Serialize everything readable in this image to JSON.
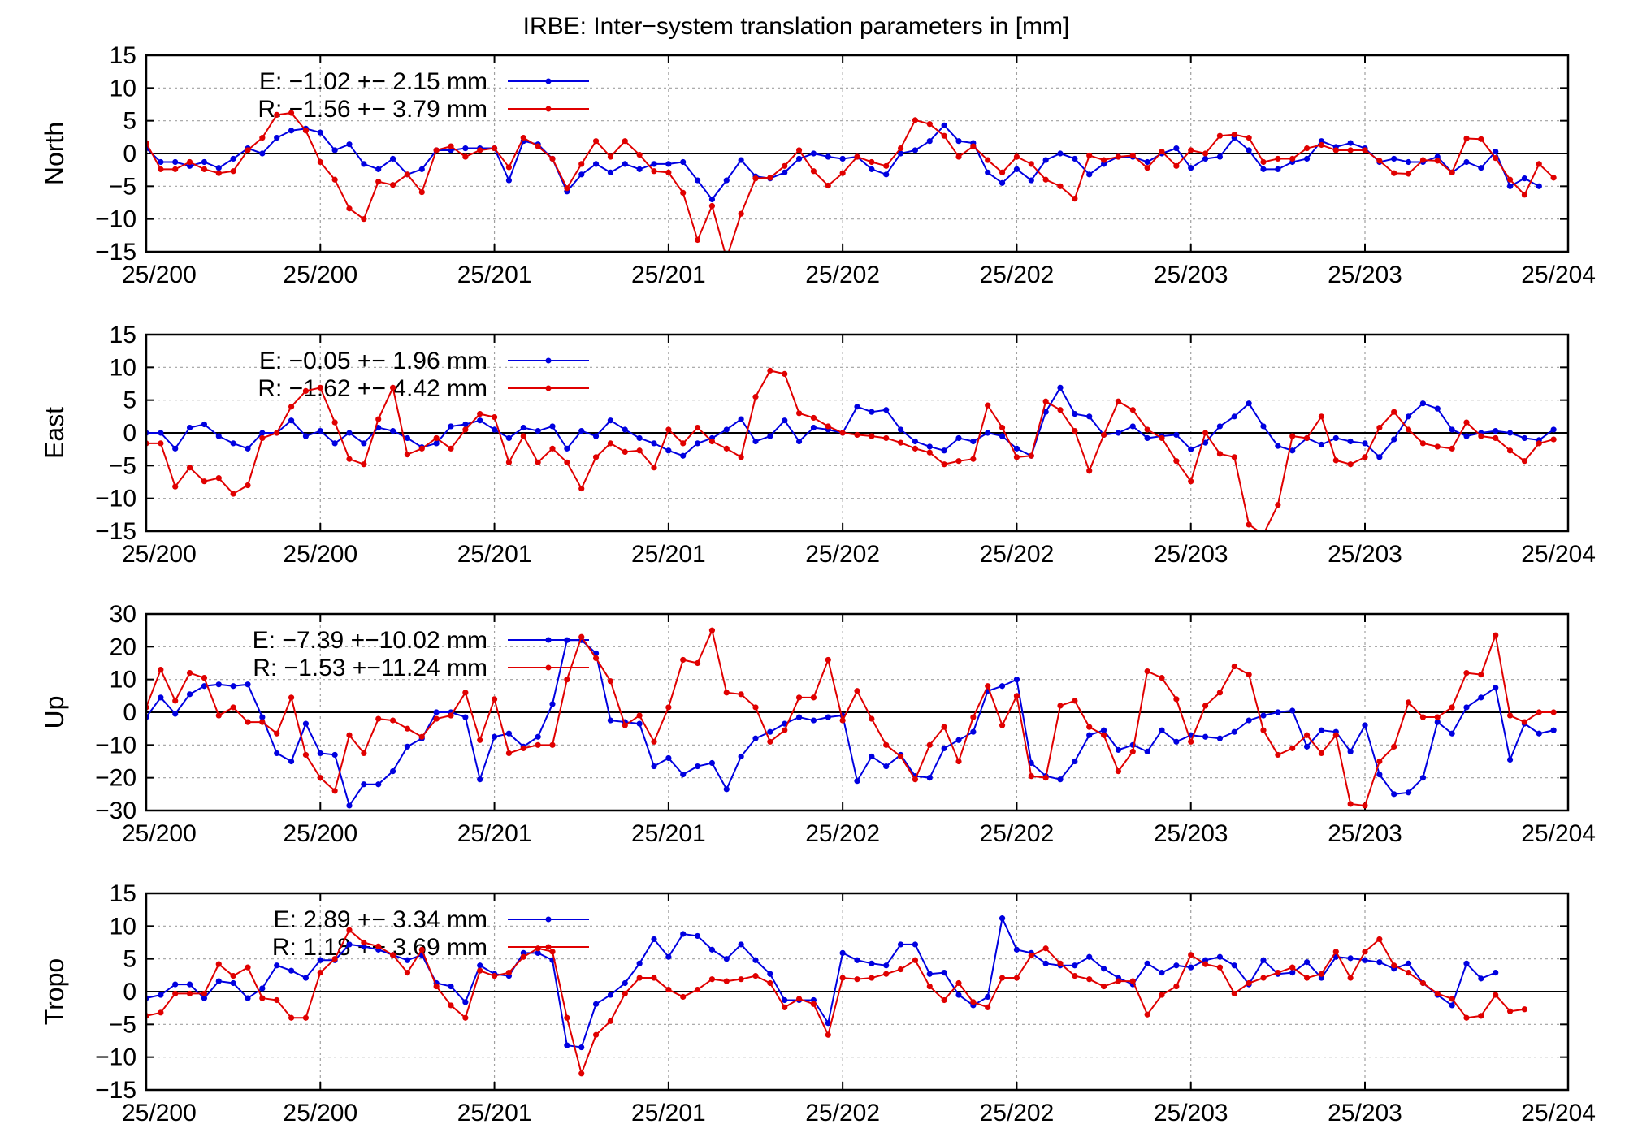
{
  "title": "IRBE: Inter−system translation parameters in [mm]",
  "colors": {
    "E": "#0000e0",
    "R": "#e00000",
    "grid": "#a0a0a0",
    "axis": "#000000"
  },
  "chart_data": [
    {
      "type": "line",
      "ylabel": "North",
      "ylim": [
        -15,
        15
      ],
      "yticks": [
        15,
        10,
        5,
        0,
        -5,
        -10,
        -15
      ],
      "ytick_labels": [
        "15",
        "10",
        "5",
        "0",
        "−5",
        "−10",
        "−15"
      ],
      "xlim": [
        0,
        98
      ],
      "xticks": [
        0,
        12,
        24,
        36,
        48,
        60,
        72,
        84,
        98
      ],
      "xtick_labels": [
        "25/200",
        "25/200",
        "25/201",
        "25/201",
        "25/202",
        "25/202",
        "25/203",
        "25/203",
        "25/204"
      ],
      "grid": "dotted",
      "legend": "top-left",
      "series": [
        {
          "name": "E",
          "legend_label": "E:  −1.02 +− 2.15 mm",
          "values": [
            0.8,
            -1.3,
            -1.3,
            -1.9,
            -1.3,
            -2.2,
            -0.8,
            0.8,
            0.0,
            2.4,
            3.5,
            3.8,
            3.2,
            0.5,
            1.4,
            -1.6,
            -2.4,
            -0.8,
            -3.2,
            -2.4,
            0.5,
            0.5,
            0.8,
            0.8,
            0.8,
            -4.1,
            1.9,
            1.4,
            -0.8,
            -5.8,
            -3.2,
            -1.6,
            -2.9,
            -1.6,
            -2.4,
            -1.6,
            -1.6,
            -1.3,
            -4.1,
            -7.0,
            -4.1,
            -1.0,
            -3.5,
            -3.8,
            -2.9,
            -0.8,
            0.0,
            -0.5,
            -0.8,
            -0.5,
            -2.4,
            -3.2,
            0.0,
            0.5,
            1.9,
            4.3,
            1.9,
            1.6,
            -2.9,
            -4.5,
            -2.4,
            -4.1,
            -1.0,
            0.0,
            -0.8,
            -3.2,
            -1.6,
            -0.5,
            -0.5,
            -1.3,
            0.0,
            0.8,
            -2.2,
            -0.8,
            -0.5,
            2.4,
            0.5,
            -2.4,
            -2.4,
            -1.3,
            -0.8,
            1.9,
            1.0,
            1.6,
            0.8,
            -1.3,
            -0.8,
            -1.3,
            -1.3,
            -0.5,
            -2.9,
            -1.3,
            -2.2,
            0.3,
            -5.0,
            -3.8,
            -5.0
          ]
        },
        {
          "name": "R",
          "legend_label": "R:  −1.56 +− 3.79 mm",
          "values": [
            1.6,
            -2.4,
            -2.4,
            -1.3,
            -2.4,
            -3.0,
            -2.7,
            0.5,
            2.4,
            5.9,
            6.2,
            3.5,
            -1.3,
            -4.0,
            -8.4,
            -10.0,
            -4.3,
            -4.8,
            -3.2,
            -5.9,
            0.5,
            1.1,
            -0.5,
            0.5,
            0.8,
            -2.1,
            2.4,
            1.1,
            -0.8,
            -5.3,
            -1.6,
            1.9,
            -0.5,
            1.9,
            -0.2,
            -2.7,
            -2.9,
            -6.0,
            -13.2,
            -8.0,
            -16.0,
            -9.2,
            -3.8,
            -3.7,
            -1.9,
            0.5,
            -2.7,
            -4.9,
            -3.0,
            -0.5,
            -1.3,
            -1.9,
            0.8,
            5.1,
            4.5,
            2.7,
            -0.5,
            1.1,
            -1.0,
            -2.9,
            -0.5,
            -1.6,
            -4.0,
            -5.0,
            -6.9,
            -0.3,
            -1.0,
            -0.5,
            -0.3,
            -2.2,
            0.3,
            -1.9,
            0.5,
            0.0,
            2.7,
            2.9,
            2.4,
            -1.3,
            -0.8,
            -0.8,
            0.8,
            1.3,
            0.5,
            0.5,
            0.5,
            -1.1,
            -3.0,
            -3.1,
            -1.0,
            -1.1,
            -2.9,
            2.3,
            2.2,
            -0.7,
            -4.0,
            -6.3,
            -1.6,
            -3.7
          ]
        }
      ]
    },
    {
      "type": "line",
      "ylabel": "East",
      "ylim": [
        -15,
        15
      ],
      "yticks": [
        15,
        10,
        5,
        0,
        -5,
        -10,
        -15
      ],
      "ytick_labels": [
        "15",
        "10",
        "5",
        "0",
        "−5",
        "−10",
        "−15"
      ],
      "xlim": [
        0,
        98
      ],
      "xticks": [
        0,
        12,
        24,
        36,
        48,
        60,
        72,
        84,
        98
      ],
      "xtick_labels": [
        "25/200",
        "25/200",
        "25/201",
        "25/201",
        "25/202",
        "25/202",
        "25/203",
        "25/203",
        "25/204"
      ],
      "grid": "dotted",
      "legend": "top-left",
      "series": [
        {
          "name": "E",
          "legend_label": "E:  −0.05 +− 1.96 mm",
          "values": [
            0.0,
            0.0,
            -2.4,
            0.8,
            1.3,
            -0.5,
            -1.6,
            -2.4,
            0.0,
            0.0,
            1.9,
            -0.5,
            0.3,
            -1.6,
            0.0,
            -1.6,
            0.8,
            0.3,
            -0.8,
            -2.2,
            -1.6,
            1.0,
            1.3,
            1.9,
            0.5,
            -0.8,
            0.8,
            0.3,
            1.0,
            -2.4,
            0.3,
            -0.5,
            1.9,
            0.5,
            -0.8,
            -1.6,
            -2.7,
            -3.5,
            -1.6,
            -0.8,
            0.5,
            2.1,
            -1.3,
            -0.5,
            1.9,
            -1.3,
            0.8,
            0.5,
            0.0,
            4.0,
            3.2,
            3.5,
            0.5,
            -1.3,
            -2.1,
            -2.7,
            -0.8,
            -1.3,
            0.0,
            -0.5,
            -2.4,
            -3.5,
            3.2,
            6.9,
            2.9,
            2.5,
            -0.3,
            0.0,
            1.0,
            -0.8,
            -0.5,
            -0.3,
            -2.5,
            -1.5,
            1.0,
            2.5,
            4.5,
            1.0,
            -2.0,
            -2.7,
            -0.8,
            -1.8,
            -0.8,
            -1.3,
            -1.6,
            -3.7,
            -1.0,
            2.5,
            4.5,
            3.7,
            0.5,
            -0.5,
            0.0,
            0.3,
            0.0,
            -0.8,
            -1.1,
            0.5
          ]
        },
        {
          "name": "R",
          "legend_label": "R:  −1.62 +− 4.42 mm",
          "values": [
            -1.6,
            -1.6,
            -8.2,
            -5.3,
            -7.4,
            -6.9,
            -9.3,
            -8.0,
            -0.8,
            0.0,
            4.0,
            6.4,
            6.9,
            1.6,
            -4.0,
            -4.8,
            2.1,
            6.9,
            -3.3,
            -2.4,
            -0.8,
            -2.4,
            0.5,
            2.9,
            2.4,
            -4.5,
            -0.5,
            -4.5,
            -2.4,
            -4.5,
            -8.5,
            -3.7,
            -1.6,
            -2.9,
            -2.7,
            -5.3,
            0.5,
            -1.6,
            0.8,
            -1.3,
            -2.4,
            -3.7,
            5.5,
            9.5,
            9.0,
            3.0,
            2.3,
            1.0,
            0.0,
            -0.3,
            -0.5,
            -0.8,
            -1.5,
            -2.4,
            -3.0,
            -4.8,
            -4.3,
            -4.0,
            4.2,
            0.8,
            -3.7,
            -3.5,
            4.8,
            3.5,
            0.3,
            -5.8,
            -0.3,
            4.8,
            3.5,
            0.5,
            -0.8,
            -4.3,
            -7.4,
            0.0,
            -3.2,
            -3.7,
            -14.0,
            -15.5,
            -11.0,
            -0.5,
            -0.8,
            2.5,
            -4.2,
            -4.8,
            -3.7,
            0.8,
            3.2,
            0.5,
            -1.6,
            -2.1,
            -2.4,
            1.6,
            -0.5,
            -0.8,
            -2.7,
            -4.3,
            -1.6,
            -1.0
          ]
        }
      ]
    },
    {
      "type": "line",
      "ylabel": "Up",
      "ylim": [
        -30,
        30
      ],
      "yticks": [
        30,
        20,
        10,
        0,
        -10,
        -20,
        -30
      ],
      "ytick_labels": [
        "30",
        "20",
        "10",
        "0",
        "−10",
        "−20",
        "−30"
      ],
      "xlim": [
        0,
        98
      ],
      "xticks": [
        0,
        12,
        24,
        36,
        48,
        60,
        72,
        84,
        98
      ],
      "xtick_labels": [
        "25/200",
        "25/200",
        "25/201",
        "25/201",
        "25/202",
        "25/202",
        "25/203",
        "25/203",
        "25/204"
      ],
      "grid": "dotted",
      "legend": "top-left",
      "series": [
        {
          "name": "E",
          "legend_label": "E:  −7.39 +−10.02 mm",
          "values": [
            -1.5,
            4.5,
            -0.5,
            5.5,
            8.0,
            8.5,
            8.0,
            8.5,
            -1.5,
            -12.5,
            -15.0,
            -3.5,
            -12.5,
            -13.0,
            -28.5,
            -22.0,
            -22.0,
            -18.0,
            -10.5,
            -8.0,
            0.0,
            0.0,
            -1.5,
            -20.5,
            -7.5,
            -6.5,
            -10.5,
            -7.5,
            2.5,
            22.0,
            22.0,
            18.0,
            -2.5,
            -3.0,
            -3.5,
            -16.5,
            -14.0,
            -19.0,
            -16.5,
            -15.5,
            -23.5,
            -13.5,
            -8.0,
            -6.0,
            -3.5,
            -1.5,
            -2.5,
            -1.5,
            -1.0,
            -21.0,
            -13.5,
            -16.5,
            -13.0,
            -19.5,
            -20.0,
            -11.0,
            -8.5,
            -6.0,
            6.5,
            8.0,
            10.0,
            -15.5,
            -19.5,
            -20.5,
            -15.0,
            -7.0,
            -5.5,
            -11.5,
            -10.0,
            -12.0,
            -5.5,
            -9.0,
            -7.0,
            -7.5,
            -8.0,
            -6.0,
            -2.5,
            -1.0,
            0.0,
            0.5,
            -10.5,
            -5.5,
            -6.0,
            -12.0,
            -4.0,
            -19.0,
            -25.0,
            -24.5,
            -20.0,
            -3.0,
            -6.5,
            1.5,
            4.5,
            7.5,
            -14.5,
            -3.5,
            -6.5,
            -5.5
          ]
        },
        {
          "name": "R",
          "legend_label": "R:  −1.53 +−11.24 mm",
          "values": [
            1.5,
            13.0,
            3.5,
            12.0,
            10.5,
            -1.0,
            1.5,
            -3.0,
            -3.0,
            -6.5,
            4.5,
            -13.0,
            -20.0,
            -24.0,
            -7.0,
            -12.5,
            -2.0,
            -2.5,
            -5.0,
            -7.5,
            -2.0,
            -1.0,
            6.0,
            -8.5,
            4.0,
            -12.5,
            -11.0,
            -10.0,
            -10.0,
            10.0,
            23.0,
            16.5,
            9.5,
            -4.0,
            -1.0,
            -9.0,
            1.5,
            16.0,
            15.0,
            25.0,
            6.0,
            5.5,
            1.5,
            -9.0,
            -5.5,
            4.5,
            4.5,
            16.0,
            -2.5,
            6.5,
            -2.0,
            -10.0,
            -13.5,
            -20.5,
            -10.0,
            -4.5,
            -15.0,
            -1.5,
            8.0,
            -4.0,
            5.0,
            -19.5,
            -20.0,
            2.0,
            3.5,
            -4.5,
            -7.0,
            -18.0,
            -12.0,
            12.5,
            10.5,
            4.0,
            -9.0,
            2.0,
            6.0,
            14.0,
            11.5,
            -5.5,
            -13.0,
            -11.0,
            -7.0,
            -12.5,
            -7.0,
            -28.0,
            -28.5,
            -15.0,
            -10.5,
            3.0,
            -1.5,
            -1.5,
            1.5,
            12.0,
            11.5,
            23.5,
            -1.0,
            -3.0,
            0.0,
            0.0
          ]
        }
      ]
    },
    {
      "type": "line",
      "ylabel": "Tropo",
      "ylim": [
        -15,
        15
      ],
      "yticks": [
        15,
        10,
        5,
        0,
        -5,
        -10,
        -15
      ],
      "ytick_labels": [
        "15",
        "10",
        "5",
        "0",
        "−5",
        "−10",
        "−15"
      ],
      "xlim": [
        0,
        98
      ],
      "xticks": [
        0,
        12,
        24,
        36,
        48,
        60,
        72,
        84,
        98
      ],
      "xtick_labels": [
        "25/200",
        "25/200",
        "25/201",
        "25/201",
        "25/202",
        "25/202",
        "25/203",
        "25/203",
        "25/204"
      ],
      "grid": "dotted",
      "legend": "top-left",
      "series": [
        {
          "name": "E",
          "legend_label": "E:   2.89 +− 3.34 mm",
          "values": [
            -1.0,
            -0.5,
            1.1,
            1.1,
            -1.0,
            1.6,
            1.3,
            -1.0,
            0.5,
            4.0,
            3.2,
            2.1,
            4.8,
            4.8,
            7.2,
            6.9,
            6.4,
            5.6,
            4.8,
            5.6,
            1.3,
            0.8,
            -1.6,
            4.0,
            2.7,
            2.4,
            5.9,
            5.9,
            4.8,
            -8.2,
            -8.5,
            -1.9,
            -0.5,
            1.3,
            4.3,
            8.0,
            5.3,
            8.8,
            8.5,
            6.4,
            5.0,
            7.2,
            4.8,
            2.7,
            -1.3,
            -1.3,
            -1.3,
            -4.8,
            5.9,
            4.8,
            4.3,
            4.0,
            7.2,
            7.2,
            2.7,
            2.9,
            -0.5,
            -2.1,
            -0.8,
            11.2,
            6.4,
            5.9,
            4.3,
            4.0,
            4.0,
            5.3,
            3.5,
            2.1,
            1.1,
            4.3,
            2.9,
            4.0,
            3.7,
            4.8,
            5.3,
            4.0,
            1.1,
            4.8,
            2.7,
            2.9,
            4.5,
            2.1,
            5.3,
            5.1,
            4.8,
            4.5,
            3.5,
            4.3,
            1.3,
            -0.5,
            -2.1,
            4.3,
            2.0,
            2.9
          ]
        },
        {
          "name": "R",
          "legend_label": "R:   1.18 +− 3.69 mm",
          "values": [
            -3.7,
            -3.2,
            -0.3,
            -0.3,
            -0.3,
            4.2,
            2.4,
            3.7,
            -1.0,
            -1.3,
            -4.0,
            -4.0,
            2.9,
            5.0,
            9.4,
            7.5,
            6.9,
            5.6,
            2.9,
            6.4,
            0.8,
            -2.1,
            -4.0,
            3.2,
            2.4,
            2.9,
            5.3,
            6.6,
            6.1,
            -4.0,
            -12.5,
            -6.6,
            -4.5,
            -0.3,
            2.1,
            2.1,
            0.3,
            -0.8,
            0.3,
            1.9,
            1.6,
            1.9,
            2.4,
            1.3,
            -2.4,
            -1.1,
            -1.9,
            -6.6,
            2.1,
            1.9,
            2.1,
            2.7,
            3.4,
            4.8,
            0.8,
            -1.3,
            1.3,
            -1.6,
            -2.4,
            2.1,
            2.1,
            5.5,
            6.6,
            4.3,
            2.4,
            1.9,
            0.8,
            1.6,
            1.6,
            -3.5,
            -0.5,
            0.8,
            5.6,
            4.2,
            3.7,
            -0.3,
            1.3,
            2.1,
            2.9,
            3.7,
            2.1,
            2.7,
            6.1,
            2.1,
            6.1,
            8.0,
            4.0,
            2.9,
            1.3,
            -0.3,
            -1.1,
            -4.0,
            -3.7,
            -0.5,
            -3.0,
            -2.7
          ]
        }
      ]
    }
  ]
}
